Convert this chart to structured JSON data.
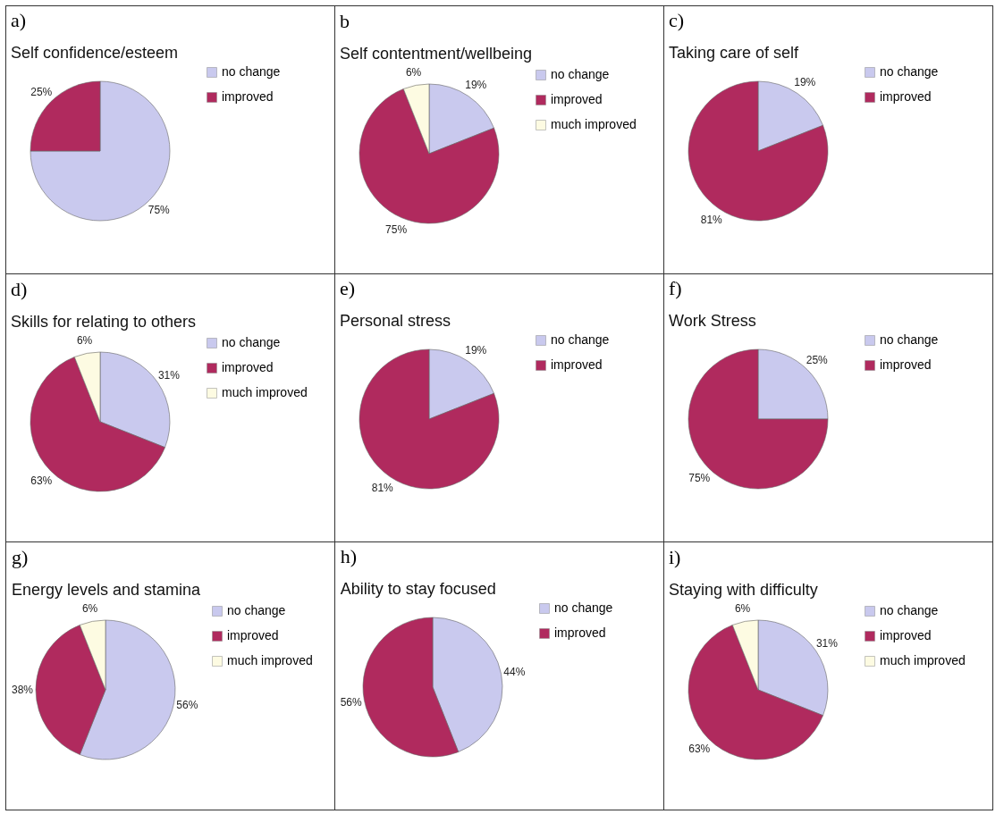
{
  "chart_data": [
    {
      "type": "pie",
      "title": "a)",
      "subtitle": "Self confidence/esteem",
      "categories": [
        "no change",
        "improved"
      ],
      "values": [
        75,
        25
      ],
      "colors": [
        "#c9c9ee",
        "#b02a5e"
      ],
      "value_labels": [
        "75%",
        "25%"
      ],
      "legend": "right"
    },
    {
      "type": "pie",
      "title": "b",
      "subtitle": "Self contentment/wellbeing",
      "categories": [
        "no change",
        "improved",
        "much improved"
      ],
      "values": [
        19,
        75,
        6
      ],
      "colors": [
        "#c9c9ee",
        "#b02a5e",
        "#fdfbe2"
      ],
      "value_labels": [
        "19%",
        "75%",
        "6%"
      ],
      "legend": "right"
    },
    {
      "type": "pie",
      "title": "c)",
      "subtitle": "Taking care of self",
      "categories": [
        "no change",
        "improved"
      ],
      "values": [
        19,
        81
      ],
      "colors": [
        "#c9c9ee",
        "#b02a5e"
      ],
      "value_labels": [
        "19%",
        "81%"
      ],
      "legend": "right"
    },
    {
      "type": "pie",
      "title": "d)",
      "subtitle": "Skills for relating to others",
      "categories": [
        "no change",
        "improved",
        "much improved"
      ],
      "values": [
        31,
        63,
        6
      ],
      "colors": [
        "#c9c9ee",
        "#b02a5e",
        "#fdfbe2"
      ],
      "value_labels": [
        "31%",
        "63%",
        "6%"
      ],
      "legend": "right"
    },
    {
      "type": "pie",
      "title": "e)",
      "subtitle": "Personal stress",
      "categories": [
        "no change",
        "improved"
      ],
      "values": [
        19,
        81
      ],
      "colors": [
        "#c9c9ee",
        "#b02a5e"
      ],
      "value_labels": [
        "19%",
        "81%"
      ],
      "legend": "right"
    },
    {
      "type": "pie",
      "title": "f)",
      "subtitle": "Work Stress",
      "categories": [
        "no change",
        "improved"
      ],
      "values": [
        25,
        75
      ],
      "colors": [
        "#c9c9ee",
        "#b02a5e"
      ],
      "value_labels": [
        "25%",
        "75%"
      ],
      "legend": "right"
    },
    {
      "type": "pie",
      "title": "g)",
      "subtitle": "Energy levels and stamina",
      "categories": [
        "no change",
        "improved",
        "much improved"
      ],
      "values": [
        56,
        38,
        6
      ],
      "colors": [
        "#c9c9ee",
        "#b02a5e",
        "#fdfbe2"
      ],
      "value_labels": [
        "56%",
        "38%",
        "6%"
      ],
      "legend": "right"
    },
    {
      "type": "pie",
      "title": "h)",
      "subtitle": "Ability to stay focused",
      "categories": [
        "no change",
        "improved"
      ],
      "values": [
        44,
        56
      ],
      "colors": [
        "#c9c9ee",
        "#b02a5e"
      ],
      "value_labels": [
        "44%",
        "56%"
      ],
      "legend": "right"
    },
    {
      "type": "pie",
      "title": "i)",
      "subtitle": "Staying with difficulty",
      "categories": [
        "no change",
        "improved",
        "much improved"
      ],
      "values": [
        31,
        63,
        6
      ],
      "colors": [
        "#c9c9ee",
        "#b02a5e",
        "#fdfbe2"
      ],
      "value_labels": [
        "31%",
        "63%",
        "6%"
      ],
      "legend": "right"
    }
  ]
}
